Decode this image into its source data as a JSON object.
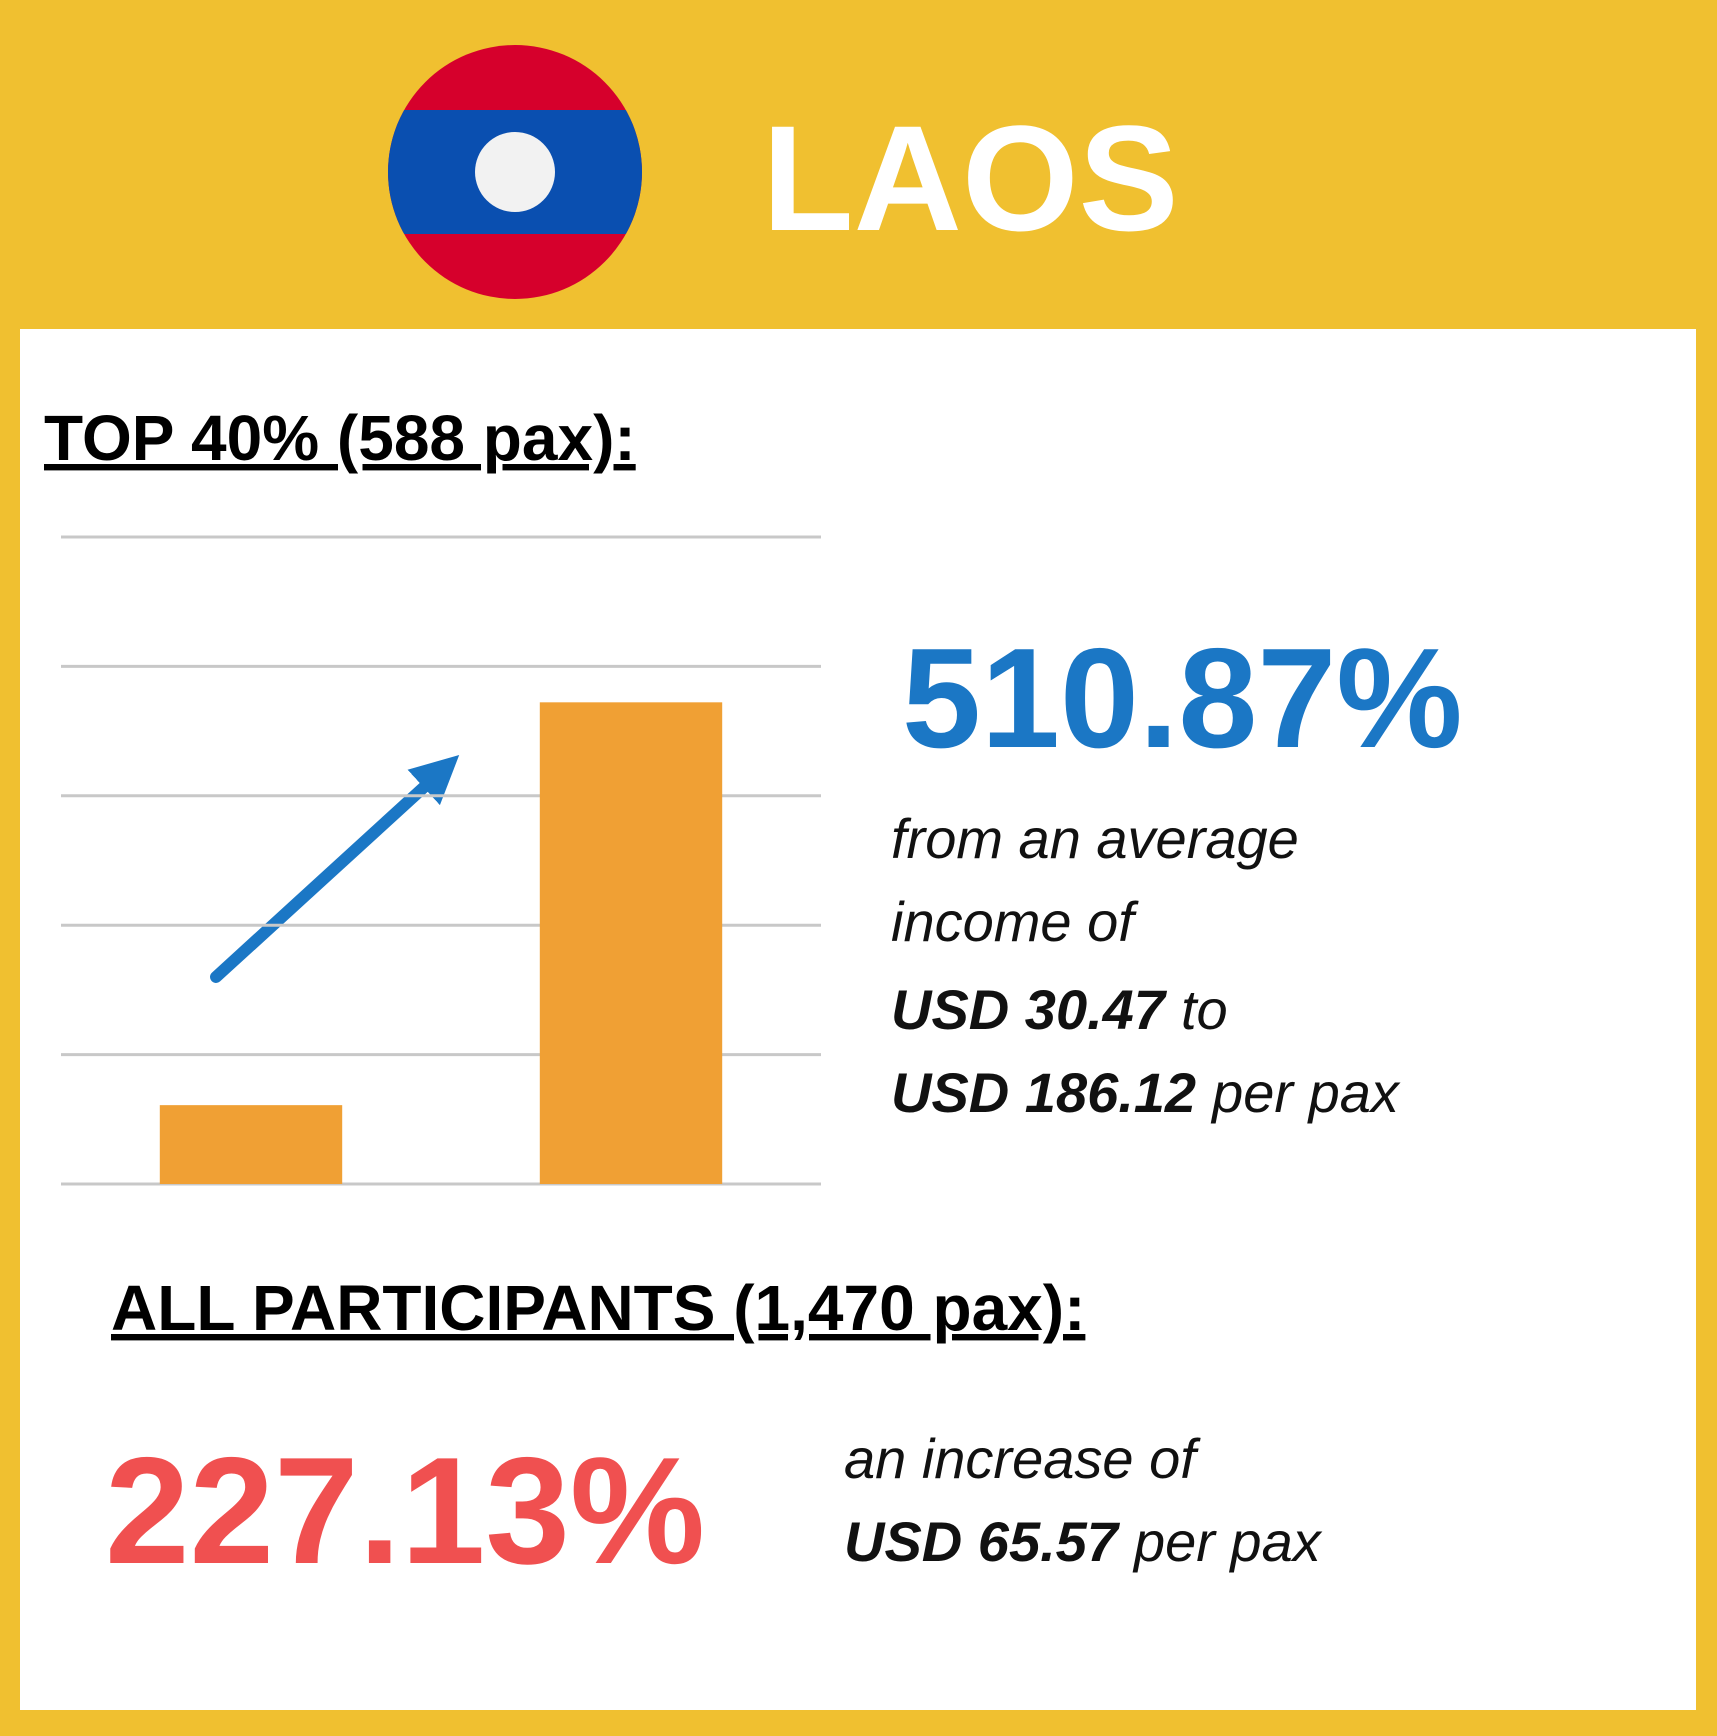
{
  "header": {
    "title": "LAOS"
  },
  "top_group": {
    "heading": "TOP 40% (588 pax):",
    "percent": "510.87%",
    "line_1": "from an average",
    "line_2": "income of",
    "from_amount": "USD 30.47",
    "to_word": "to",
    "to_amount": "USD 186.12",
    "per_pax": "per pax"
  },
  "chart_data": {
    "type": "bar",
    "categories": [
      null,
      null
    ],
    "values": [
      30.47,
      186.12
    ],
    "color": "#f0a034",
    "ylim": [
      0,
      250
    ],
    "yticks": [
      0,
      50,
      100,
      150,
      200,
      250
    ],
    "grid": true
  },
  "all_group": {
    "heading": "ALL PARTICIPANTS (1,470 pax):",
    "percent": "227.13%",
    "line_1": "an increase of",
    "amount": "USD 65.57",
    "per_pax": "per pax"
  }
}
